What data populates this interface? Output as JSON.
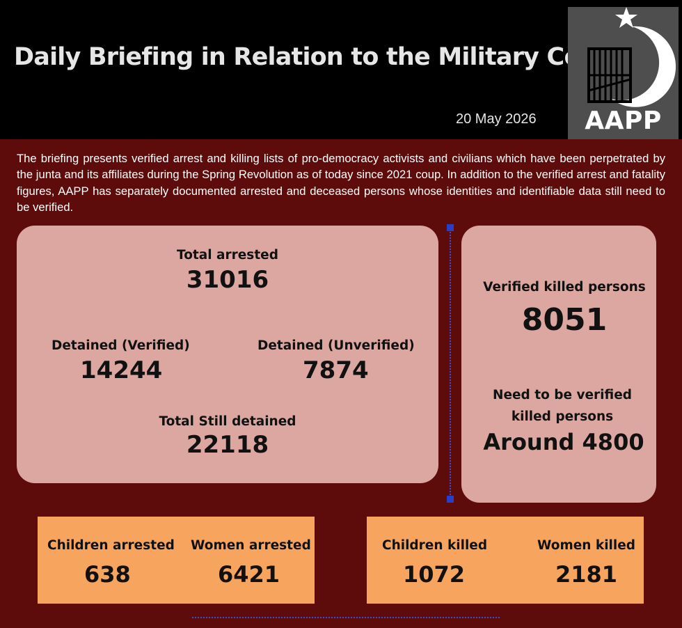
{
  "header": {
    "title": "Daily Briefing in Relation to the Military Coup",
    "date": "20 May 2026",
    "logo_text": "AAPP"
  },
  "intro": "The briefing presents verified arrest and killing lists of pro-democracy activists and civilians which have been perpetrated by the junta and its affiliates during the Spring Revolution as of today since 2021 coup. In addition to the verified arrest and fatality figures, AAPP has separately documented arrested and deceased persons whose identities and identifiable data still need to be verified.",
  "arrests": {
    "total_label": "Total arrested",
    "total_value": "31016",
    "detained_verified_label": "Detained (Verified)",
    "detained_verified_value": "14244",
    "detained_unverified_label": "Detained (Unverified)",
    "detained_unverified_value": "7874",
    "still_detained_label": "Total Still detained",
    "still_detained_value": "22118"
  },
  "killings": {
    "verified_label": "Verified killed persons",
    "verified_value": "8051",
    "unverified_label_line1": "Need to be verified",
    "unverified_label_line2": "killed persons",
    "unverified_value": "Around 4800"
  },
  "arrested_breakdown": {
    "children_label": "Children arrested",
    "children_value": "638",
    "women_label": "Women arrested",
    "women_value": "6421"
  },
  "killed_breakdown": {
    "children_label": "Children killed",
    "children_value": "1072",
    "women_label": "Women killed",
    "women_value": "2181"
  },
  "colors": {
    "background": "#5e0b0b",
    "header": "#000000",
    "card_pink": "#dba7a0",
    "card_orange": "#f7a45e",
    "divider": "#3a4fd8"
  }
}
